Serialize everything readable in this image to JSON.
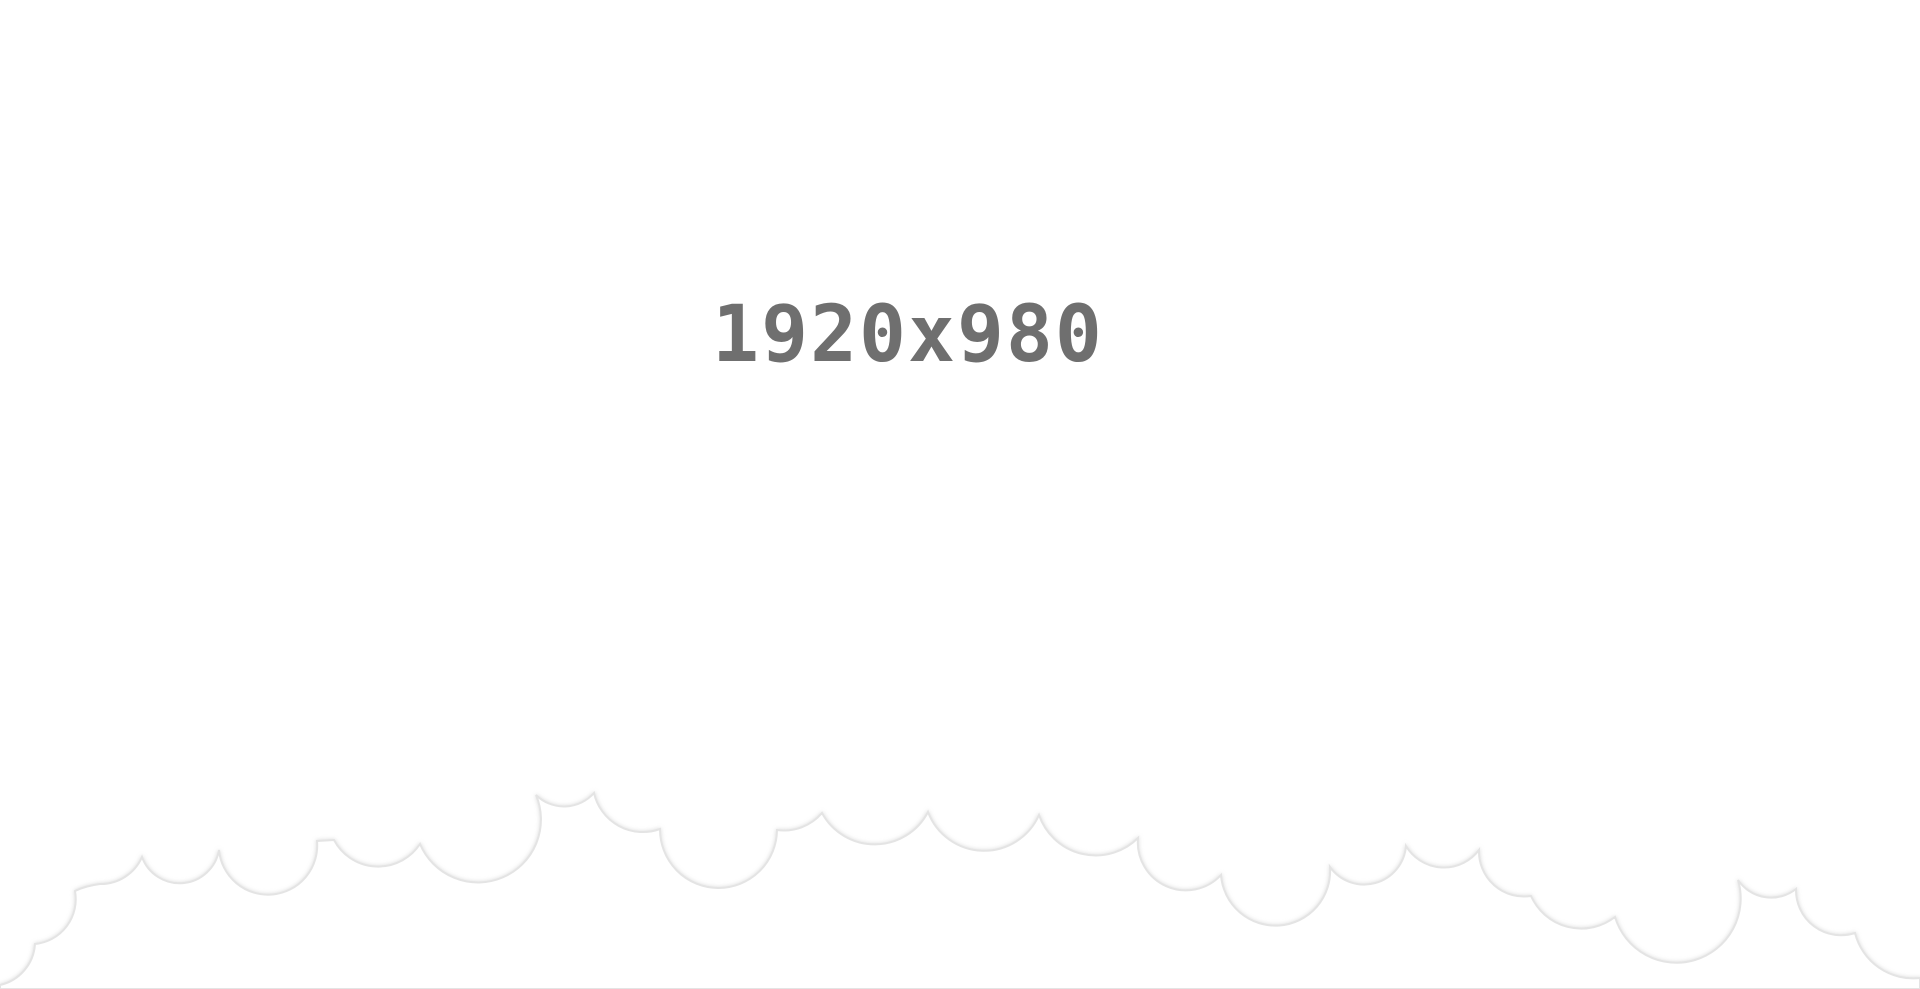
{
  "placeholder": {
    "dimensions_text": "1920x980"
  },
  "colors": {
    "background": "#ffffff",
    "text": "#6f6f6f",
    "cloud_fill": "#ffffff",
    "cloud_edge": "#e4e4e4"
  }
}
